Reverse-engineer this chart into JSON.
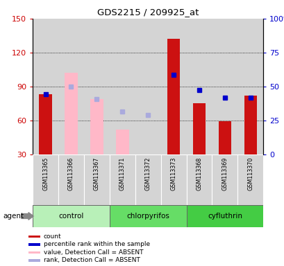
{
  "title": "GDS2215 / 209925_at",
  "samples": [
    "GSM113365",
    "GSM113366",
    "GSM113367",
    "GSM113371",
    "GSM113372",
    "GSM113373",
    "GSM113368",
    "GSM113369",
    "GSM113370"
  ],
  "groups": [
    {
      "name": "control",
      "color": "#b8f0b8",
      "indices": [
        0,
        1,
        2
      ]
    },
    {
      "name": "chlorpyrifos",
      "color": "#66dd66",
      "indices": [
        3,
        4,
        5
      ]
    },
    {
      "name": "cyfluthrin",
      "color": "#44cc44",
      "indices": [
        6,
        7,
        8
      ]
    }
  ],
  "count_present": [
    {
      "idx": 0,
      "val": 83
    },
    {
      "idx": 5,
      "val": 132
    },
    {
      "idx": 6,
      "val": 75
    },
    {
      "idx": 7,
      "val": 59
    },
    {
      "idx": 8,
      "val": 82
    }
  ],
  "count_absent": [
    {
      "idx": 1,
      "val": 102
    },
    {
      "idx": 2,
      "val": 79
    },
    {
      "idx": 3,
      "val": 52
    },
    {
      "idx": 4,
      "val": 30
    }
  ],
  "rank_present": [
    {
      "idx": 0,
      "val": 83
    },
    {
      "idx": 5,
      "val": 100
    },
    {
      "idx": 6,
      "val": 87
    },
    {
      "idx": 7,
      "val": 80
    },
    {
      "idx": 8,
      "val": 80
    }
  ],
  "rank_absent": [
    {
      "idx": 1,
      "val": 90
    },
    {
      "idx": 2,
      "val": 79
    },
    {
      "idx": 3,
      "val": 68
    },
    {
      "idx": 4,
      "val": 65
    }
  ],
  "ylim": [
    30,
    150
  ],
  "yticks_left": [
    30,
    60,
    90,
    120,
    150
  ],
  "yticks_right_pct": [
    0,
    25,
    50,
    75,
    100
  ],
  "hlines": [
    60,
    90,
    120
  ],
  "bar_color_present": "#cc1111",
  "bar_color_absent": "#ffb8c8",
  "rank_color_present": "#0000cc",
  "rank_color_absent": "#aaaadd",
  "bar_width": 0.5,
  "cell_color": "#d4d4d4",
  "legend_items": [
    {
      "color": "#cc1111",
      "label": "count"
    },
    {
      "color": "#0000cc",
      "label": "percentile rank within the sample"
    },
    {
      "color": "#ffb8c8",
      "label": "value, Detection Call = ABSENT"
    },
    {
      "color": "#aaaadd",
      "label": "rank, Detection Call = ABSENT"
    }
  ]
}
